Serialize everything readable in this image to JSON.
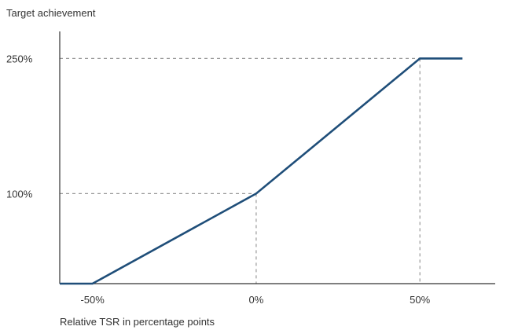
{
  "chart_data": {
    "type": "line",
    "ylabel": "Target achievement",
    "xlabel": "Relative TSR in percentage points",
    "x_ticks": [
      {
        "value": -50,
        "label": "-50%"
      },
      {
        "value": 0,
        "label": "0%"
      },
      {
        "value": 50,
        "label": "50%"
      }
    ],
    "y_ticks": [
      {
        "value": 100,
        "label": "100%"
      },
      {
        "value": 250,
        "label": "250%"
      }
    ],
    "xlim": [
      -60,
      73
    ],
    "ylim": [
      0,
      280
    ],
    "series": [
      {
        "x": [
          -60,
          -50,
          0,
          50,
          63
        ],
        "y": [
          0,
          0,
          100,
          250,
          250
        ],
        "color": "#1f4e79"
      }
    ],
    "reference_lines": [
      {
        "x": 0,
        "y": 100
      },
      {
        "x": 50,
        "y": 250
      }
    ],
    "grid": false,
    "colors": {
      "line": "#1f4e79",
      "guide": "#9a9a9a",
      "axis": "#333333",
      "text": "#333333"
    }
  }
}
